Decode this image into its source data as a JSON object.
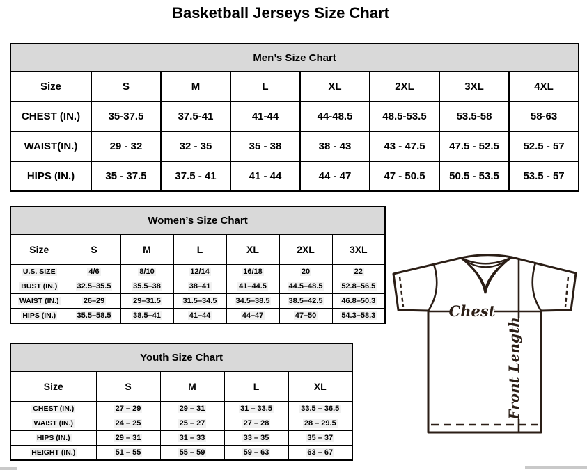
{
  "page_title": "Basketball Jerseys Size Chart",
  "tables": {
    "men": {
      "title": "Men’s Size Chart",
      "header": [
        "Size",
        "S",
        "M",
        "L",
        "XL",
        "2XL",
        "3XL",
        "4XL"
      ],
      "rows": [
        [
          "CHEST (IN.)",
          "35-37.5",
          "37.5-41",
          "41-44",
          "44-48.5",
          "48.5-53.5",
          "53.5-58",
          "58-63"
        ],
        [
          "WAIST(IN.)",
          "29 - 32",
          "32 - 35",
          "35 - 38",
          "38 - 43",
          "43 - 47.5",
          "47.5 - 52.5",
          "52.5 - 57"
        ],
        [
          "HIPS (IN.)",
          "35 - 37.5",
          "37.5 - 41",
          "41 - 44",
          "44 - 47",
          "47 - 50.5",
          "50.5 - 53.5",
          "53.5 - 57"
        ]
      ]
    },
    "women": {
      "title": "Women’s Size Chart",
      "header": [
        "Size",
        "S",
        "M",
        "L",
        "XL",
        "2XL",
        "3XL"
      ],
      "rows": [
        [
          "U.S. SIZE",
          "4/6",
          "8/10",
          "12/14",
          "16/18",
          "20",
          "22"
        ],
        [
          "BUST (IN.)",
          "32.5–35.5",
          "35.5–38",
          "38–41",
          "41–44.5",
          "44.5–48.5",
          "52.8–56.5"
        ],
        [
          "WAIST (IN.)",
          "26–29",
          "29–31.5",
          "31.5–34.5",
          "34.5–38.5",
          "38.5–42.5",
          "46.8–50.3"
        ],
        [
          "HIPS (IN.)",
          "35.5–58.5",
          "38.5–41",
          "41–44",
          "44–47",
          "47–50",
          "54.3–58.3"
        ]
      ]
    },
    "youth": {
      "title": "Youth Size Chart",
      "header": [
        "Size",
        "S",
        "M",
        "L",
        "XL"
      ],
      "rows": [
        [
          "CHEST (IN.)",
          "27 – 29",
          "29 – 31",
          "31 – 33.5",
          "33.5 – 36.5"
        ],
        [
          "WAIST (IN.)",
          "24 – 25",
          "25 – 27",
          "27 – 28",
          "28 – 29.5"
        ],
        [
          "HIPS (IN.)",
          "29 – 31",
          "31 – 33",
          "33 – 35",
          "35 – 37"
        ],
        [
          "HEIGHT (IN.)",
          "51 – 55",
          "55 – 59",
          "59 – 63",
          "63 – 67"
        ]
      ]
    }
  },
  "diagram": {
    "chest_label": "Chest",
    "front_length_label": "Front Length"
  },
  "colors": {
    "table_band_bg": "#d9d9d9",
    "border": "#000000",
    "diagram_line": "#2b1e16",
    "highlight_bg": "#f1f1f1",
    "scrollbar": "#c9c9c9"
  }
}
